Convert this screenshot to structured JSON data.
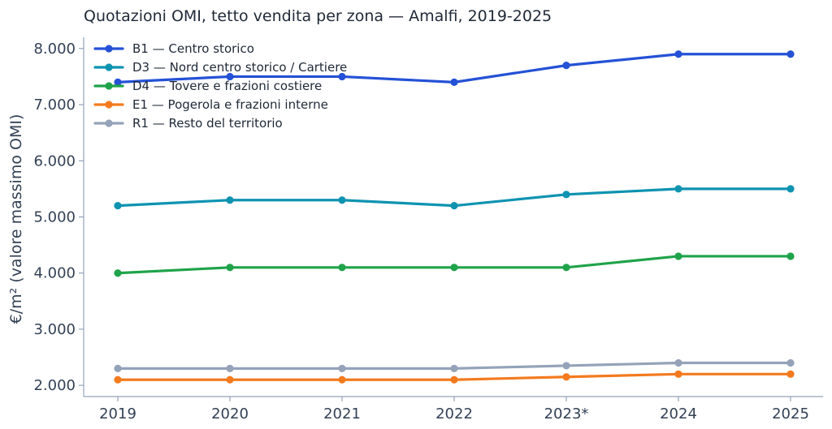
{
  "chart_data": {
    "type": "line",
    "title": "Quotazioni OMI, tetto vendita per zona — Amalfi, 2019-2025",
    "xlabel": "",
    "ylabel": "€/m² (valore massimo OMI)",
    "categories": [
      "2019",
      "2020",
      "2021",
      "2022",
      "2023*",
      "2024",
      "2025"
    ],
    "ylim": [
      1800,
      8200
    ],
    "yticks": [
      2000,
      3000,
      4000,
      5000,
      6000,
      7000,
      8000
    ],
    "ytick_labels": [
      "2.000",
      "3.000",
      "4.000",
      "5.000",
      "6.000",
      "7.000",
      "8.000"
    ],
    "grid": false,
    "legend_position": "top-left",
    "series": [
      {
        "name": "B1 — Centro storico",
        "color": "#2451d6",
        "values": [
          7400,
          7500,
          7500,
          7400,
          7700,
          7900,
          7900
        ]
      },
      {
        "name": "D3 — Nord centro storico / Cartiere",
        "color": "#0e93b1",
        "values": [
          5200,
          5300,
          5300,
          5200,
          5400,
          5500,
          5500
        ]
      },
      {
        "name": "D4 — Tovere e frazioni costiere",
        "color": "#1fa34a",
        "values": [
          4000,
          4100,
          4100,
          4100,
          4100,
          4300,
          4300
        ]
      },
      {
        "name": "E1 — Pogerola e frazioni interne",
        "color": "#f47a1f",
        "values": [
          2100,
          2100,
          2100,
          2100,
          2150,
          2200,
          2200
        ]
      },
      {
        "name": "R1 — Resto del territorio",
        "color": "#94a3b8",
        "values": [
          2300,
          2300,
          2300,
          2300,
          2350,
          2400,
          2400
        ]
      }
    ]
  }
}
